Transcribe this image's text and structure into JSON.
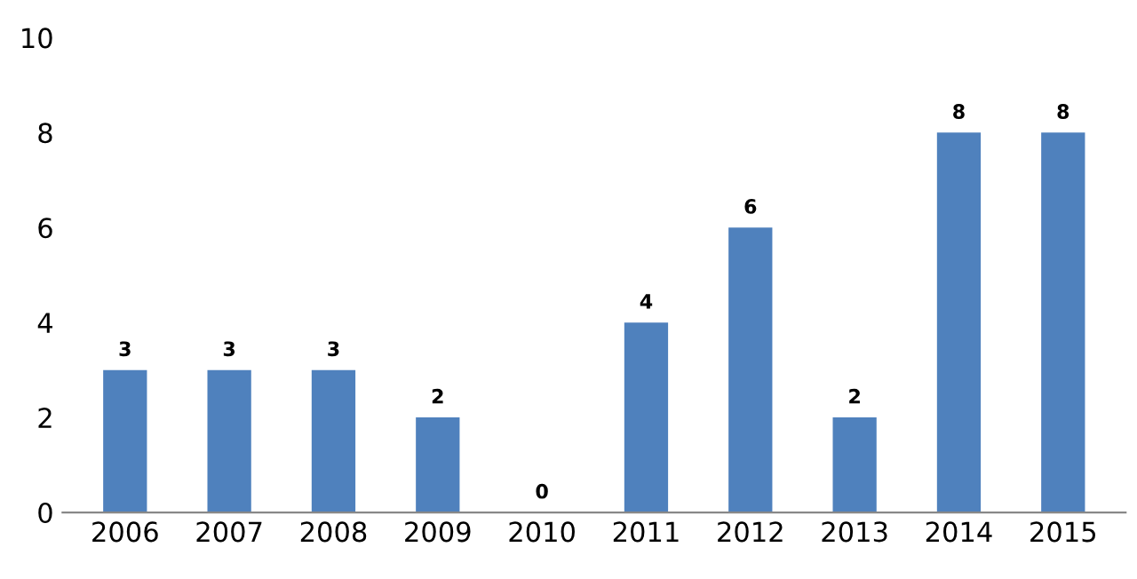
{
  "chart_data": {
    "type": "bar",
    "categories": [
      "2006",
      "2007",
      "2008",
      "2009",
      "2010",
      "2011",
      "2012",
      "2013",
      "2014",
      "2015"
    ],
    "values": [
      3,
      3,
      3,
      2,
      0,
      4,
      6,
      2,
      8,
      8
    ],
    "color": "#4f81bd",
    "ylim": [
      0,
      10
    ],
    "yticks": [
      0,
      2,
      4,
      6,
      8,
      10
    ],
    "grid": false,
    "data_labels": true
  }
}
